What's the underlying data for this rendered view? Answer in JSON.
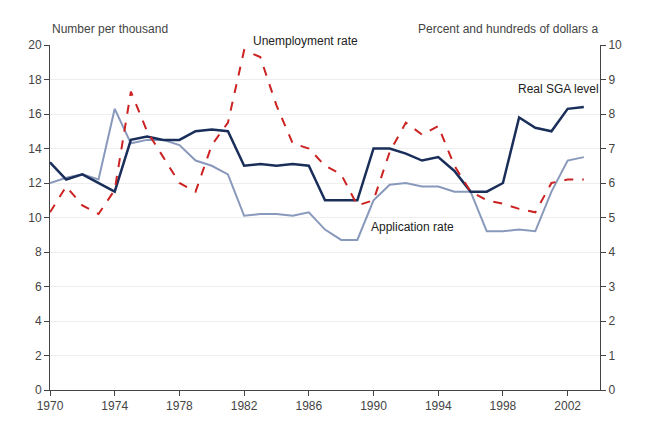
{
  "chart_data": {
    "type": "line",
    "ylabel": "Number per thousand",
    "y2label": "Percent and hundreds of dollars a",
    "x": [
      1970,
      1971,
      1972,
      1973,
      1974,
      1975,
      1976,
      1977,
      1978,
      1979,
      1980,
      1981,
      1982,
      1983,
      1984,
      1985,
      1986,
      1987,
      1988,
      1989,
      1990,
      1991,
      1992,
      1993,
      1994,
      1995,
      1996,
      1997,
      1998,
      1999,
      2000,
      2001,
      2002,
      2003
    ],
    "series": [
      {
        "color": "#8899bb",
        "line_style": "solid",
        "axis": "y",
        "values": [
          12.0,
          12.3,
          12.5,
          12.2,
          16.3,
          14.3,
          14.5,
          14.5,
          14.2,
          13.3,
          13.0,
          12.5,
          10.1,
          10.2,
          10.2,
          10.1,
          10.3,
          9.3,
          8.7,
          8.7,
          11.0,
          11.9,
          12.0,
          11.8,
          11.8,
          11.5,
          11.5,
          9.2,
          9.2,
          9.3,
          9.2,
          11.5,
          13.3,
          13.5
        ]
      },
      {
        "color": "#1a2e5a",
        "line_style": "solid",
        "axis": "y2",
        "values": [
          6.6,
          6.1,
          6.25,
          6.0,
          5.75,
          7.25,
          7.35,
          7.25,
          7.25,
          7.5,
          7.55,
          7.5,
          6.5,
          6.55,
          6.5,
          6.55,
          6.5,
          5.5,
          5.5,
          5.5,
          7.0,
          7.0,
          6.85,
          6.65,
          6.75,
          6.35,
          5.75,
          5.75,
          6.0,
          7.9,
          7.6,
          7.5,
          8.15,
          8.2
        ]
      },
      {
        "color": "#cc2222",
        "line_style": "dashed",
        "axis": "y2",
        "values": [
          5.15,
          5.9,
          5.35,
          5.1,
          5.8,
          8.65,
          7.5,
          6.75,
          6.0,
          5.75,
          7.1,
          7.75,
          9.85,
          9.65,
          8.25,
          7.15,
          7.0,
          6.5,
          6.25,
          5.35,
          5.5,
          6.9,
          7.75,
          7.4,
          7.65,
          6.5,
          5.75,
          5.5,
          5.4,
          5.25,
          5.15,
          6.0,
          6.1,
          6.1
        ]
      }
    ],
    "xlim": [
      1970,
      2004
    ],
    "xticks": [
      1970,
      1974,
      1978,
      1982,
      1986,
      1990,
      1994,
      1998,
      2002
    ],
    "ylim": [
      0,
      20
    ],
    "yticks": [
      0,
      2,
      4,
      6,
      8,
      10,
      12,
      14,
      16,
      18,
      20
    ],
    "y2lim": [
      0,
      10
    ],
    "y2ticks": [
      0,
      1,
      2,
      3,
      4,
      5,
      6,
      7,
      8,
      9,
      10
    ],
    "grid": true,
    "annotations": [
      {
        "text": "Unemployment rate",
        "x": 1982.4,
        "y": 9.85,
        "axis": "y2"
      },
      {
        "text": "Application rate",
        "x": 1989.7,
        "y": 4.45,
        "axis": "y2"
      },
      {
        "text": "Real SGA level",
        "x": 1998.8,
        "y": 8.45,
        "axis": "y2"
      }
    ]
  }
}
